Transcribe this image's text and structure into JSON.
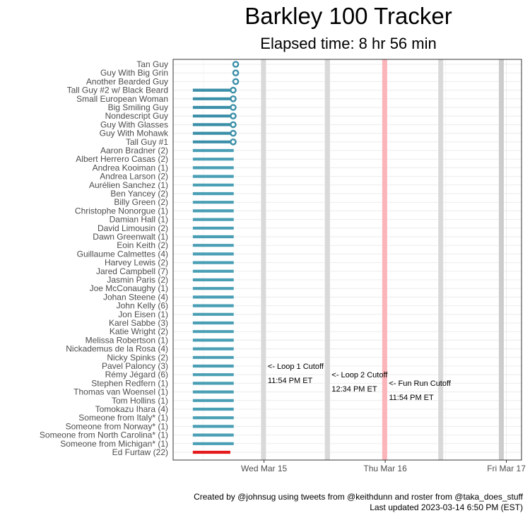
{
  "chart_data": {
    "type": "bar",
    "title": "Barkley 100 Tracker",
    "subtitle": "Elapsed time: 8 hr 56 min",
    "x_axis": {
      "type": "time",
      "ticks": [
        {
          "label": "Wed Mar 15",
          "value": "2023-03-15 00:00"
        },
        {
          "label": "Thu Mar 16",
          "value": "2023-03-16 00:00"
        },
        {
          "label": "Fri Mar 17",
          "value": "2023-03-17 00:00"
        }
      ],
      "range": [
        "2023-03-14 06:00",
        "2023-03-17 03:00"
      ]
    },
    "grid": true,
    "vertical_bands": [
      {
        "time": "2023-03-14 23:54",
        "color": "#d9d9d9",
        "label": "<- Loop 1 Cutoff",
        "sublabel": "11:54 PM ET"
      },
      {
        "time": "2023-03-15 12:34",
        "color": "#d9d9d9",
        "label": "<- Loop 2 Cutoff",
        "sublabel": "12:34 PM ET"
      },
      {
        "time": "2023-03-15 23:54",
        "color": "#fbb4b9",
        "label": "<- Fun Run Cutoff",
        "sublabel": "11:54 PM ET"
      },
      {
        "time": "2023-03-16 11:00",
        "color": "#d9d9d9",
        "label": "",
        "sublabel": ""
      },
      {
        "time": "2023-03-16 23:00",
        "color": "#cccccc",
        "label": "",
        "sublabel": ""
      }
    ],
    "runners": [
      {
        "name": "Tan Guy",
        "start": null,
        "end": "2023-03-14 17:50",
        "status": "active"
      },
      {
        "name": "Guy With Big Grin",
        "start": null,
        "end": "2023-03-14 17:50",
        "status": "active"
      },
      {
        "name": "Another Bearded Guy",
        "start": null,
        "end": "2023-03-14 17:50",
        "status": "active"
      },
      {
        "name": "Tall Guy #2 w/ Black Beard",
        "start": "2023-03-14 09:54",
        "end": "2023-03-14 17:20",
        "status": "active"
      },
      {
        "name": "Small European Woman",
        "start": "2023-03-14 09:54",
        "end": "2023-03-14 17:20",
        "status": "active"
      },
      {
        "name": "Big Smiling Guy",
        "start": "2023-03-14 09:54",
        "end": "2023-03-14 17:20",
        "status": "active"
      },
      {
        "name": "Nondescript Guy",
        "start": "2023-03-14 09:54",
        "end": "2023-03-14 17:20",
        "status": "active"
      },
      {
        "name": "Guy With Glasses",
        "start": "2023-03-14 09:54",
        "end": "2023-03-14 17:20",
        "status": "active"
      },
      {
        "name": "Guy With Mohawk",
        "start": "2023-03-14 09:54",
        "end": "2023-03-14 17:20",
        "status": "active"
      },
      {
        "name": "Tall Guy #1",
        "start": "2023-03-14 09:54",
        "end": "2023-03-14 17:20",
        "status": "active"
      },
      {
        "name": "Aaron Bradner (2)",
        "start": "2023-03-14 09:54",
        "end": "2023-03-14 18:00",
        "status": "running"
      },
      {
        "name": "Albert Herrero Casas (2)",
        "start": "2023-03-14 09:54",
        "end": "2023-03-14 18:00",
        "status": "running"
      },
      {
        "name": "Andrea Kooiman (1)",
        "start": "2023-03-14 09:54",
        "end": "2023-03-14 18:00",
        "status": "running"
      },
      {
        "name": "Andrea Larson (2)",
        "start": "2023-03-14 09:54",
        "end": "2023-03-14 18:00",
        "status": "running"
      },
      {
        "name": "Aurélien Sanchez (1)",
        "start": "2023-03-14 09:54",
        "end": "2023-03-14 18:00",
        "status": "running"
      },
      {
        "name": "Ben Yancey (2)",
        "start": "2023-03-14 09:54",
        "end": "2023-03-14 18:00",
        "status": "running"
      },
      {
        "name": "Billy Green (2)",
        "start": "2023-03-14 09:54",
        "end": "2023-03-14 18:00",
        "status": "running"
      },
      {
        "name": "Christophe Nonorgue (1)",
        "start": "2023-03-14 09:54",
        "end": "2023-03-14 18:00",
        "status": "running"
      },
      {
        "name": "Damian Hall (1)",
        "start": "2023-03-14 09:54",
        "end": "2023-03-14 18:00",
        "status": "running"
      },
      {
        "name": "David Limousin (2)",
        "start": "2023-03-14 09:54",
        "end": "2023-03-14 18:00",
        "status": "running"
      },
      {
        "name": "Dawn Greenwalt (1)",
        "start": "2023-03-14 09:54",
        "end": "2023-03-14 18:00",
        "status": "running"
      },
      {
        "name": "Eoin Keith (2)",
        "start": "2023-03-14 09:54",
        "end": "2023-03-14 18:00",
        "status": "running"
      },
      {
        "name": "Guillaume Calmettes (4)",
        "start": "2023-03-14 09:54",
        "end": "2023-03-14 18:00",
        "status": "running"
      },
      {
        "name": "Harvey Lewis (2)",
        "start": "2023-03-14 09:54",
        "end": "2023-03-14 18:00",
        "status": "running"
      },
      {
        "name": "Jared Campbell (7)",
        "start": "2023-03-14 09:54",
        "end": "2023-03-14 18:00",
        "status": "running"
      },
      {
        "name": "Jasmin Paris (2)",
        "start": "2023-03-14 09:54",
        "end": "2023-03-14 18:00",
        "status": "running"
      },
      {
        "name": "Joe McConaughy (1)",
        "start": "2023-03-14 09:54",
        "end": "2023-03-14 18:00",
        "status": "running"
      },
      {
        "name": "Johan Steene (4)",
        "start": "2023-03-14 09:54",
        "end": "2023-03-14 18:00",
        "status": "running"
      },
      {
        "name": "John Kelly (6)",
        "start": "2023-03-14 09:54",
        "end": "2023-03-14 18:00",
        "status": "running"
      },
      {
        "name": "Jon Eisen (1)",
        "start": "2023-03-14 09:54",
        "end": "2023-03-14 18:00",
        "status": "running"
      },
      {
        "name": "Karel Sabbe (3)",
        "start": "2023-03-14 09:54",
        "end": "2023-03-14 18:00",
        "status": "running"
      },
      {
        "name": "Katie Wright (2)",
        "start": "2023-03-14 09:54",
        "end": "2023-03-14 18:00",
        "status": "running"
      },
      {
        "name": "Melissa Robertson (1)",
        "start": "2023-03-14 09:54",
        "end": "2023-03-14 18:00",
        "status": "running"
      },
      {
        "name": "Nickademus de la Rosa (4)",
        "start": "2023-03-14 09:54",
        "end": "2023-03-14 18:00",
        "status": "running"
      },
      {
        "name": "Nicky Spinks (2)",
        "start": "2023-03-14 09:54",
        "end": "2023-03-14 18:00",
        "status": "running"
      },
      {
        "name": "Pavel Paloncy (3)",
        "start": "2023-03-14 09:54",
        "end": "2023-03-14 18:00",
        "status": "running"
      },
      {
        "name": "Rémy Jégard (6)",
        "start": "2023-03-14 09:54",
        "end": "2023-03-14 18:00",
        "status": "running"
      },
      {
        "name": "Stephen Redfern (1)",
        "start": "2023-03-14 09:54",
        "end": "2023-03-14 18:00",
        "status": "running"
      },
      {
        "name": "Thomas van Woensel (1)",
        "start": "2023-03-14 09:54",
        "end": "2023-03-14 18:00",
        "status": "running"
      },
      {
        "name": "Tom Hollins (1)",
        "start": "2023-03-14 09:54",
        "end": "2023-03-14 18:00",
        "status": "running"
      },
      {
        "name": "Tomokazu Ihara (4)",
        "start": "2023-03-14 09:54",
        "end": "2023-03-14 18:00",
        "status": "running"
      },
      {
        "name": "Someone from Italy* (1)",
        "start": "2023-03-14 09:54",
        "end": "2023-03-14 18:00",
        "status": "running"
      },
      {
        "name": "Someone from Norway* (1)",
        "start": "2023-03-14 09:54",
        "end": "2023-03-14 18:00",
        "status": "running"
      },
      {
        "name": "Someone from North Carolina* (1)",
        "start": "2023-03-14 09:54",
        "end": "2023-03-14 18:00",
        "status": "running"
      },
      {
        "name": "Someone from Michigan* (1)",
        "start": "2023-03-14 09:54",
        "end": "2023-03-14 18:00",
        "status": "running"
      },
      {
        "name": "Ed Furtaw (22)",
        "start": "2023-03-14 09:54",
        "end": "2023-03-14 17:20",
        "status": "dropped"
      }
    ],
    "colors": {
      "running": "#4a9fb5",
      "active": "#3b8fa8",
      "dropped": "#e41a1c"
    },
    "caption": [
      "Created by @johnsug using tweets from @keithdunn and roster from @taka_does_stuff",
      "Last updated 2023-03-14 6:50 PM (EST)"
    ]
  }
}
